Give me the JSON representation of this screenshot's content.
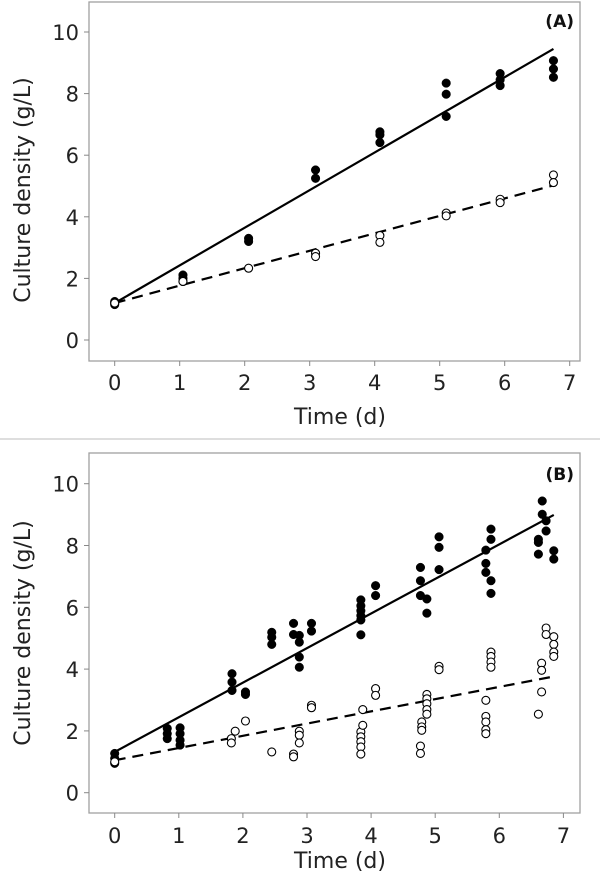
{
  "chart_data": [
    {
      "type": "scatter",
      "panel_label": "(A)",
      "xlabel": "Time (d)",
      "ylabel": "Culture density (g/L)",
      "xlim": [
        0,
        7
      ],
      "ylim": [
        0,
        10
      ],
      "xticks": [
        0,
        1,
        2,
        3,
        4,
        5,
        6,
        7
      ],
      "yticks": [
        0,
        2,
        4,
        6,
        8,
        10
      ],
      "grid": false,
      "series": [
        {
          "marker": "filled",
          "points": [
            [
              0,
              1.25
            ],
            [
              0,
              1.2
            ],
            [
              0,
              1.15
            ],
            [
              1.05,
              2.11
            ],
            [
              1.05,
              2.0
            ],
            [
              1.05,
              1.9
            ],
            [
              2.06,
              3.3
            ],
            [
              2.06,
              3.2
            ],
            [
              3.09,
              5.52
            ],
            [
              3.09,
              5.25
            ],
            [
              4.08,
              6.76
            ],
            [
              4.08,
              6.66
            ],
            [
              4.08,
              6.41
            ],
            [
              5.1,
              8.34
            ],
            [
              5.1,
              7.98
            ],
            [
              5.1,
              7.26
            ],
            [
              5.93,
              8.65
            ],
            [
              5.93,
              8.45
            ],
            [
              5.93,
              8.26
            ],
            [
              6.75,
              9.07
            ],
            [
              6.75,
              8.8
            ],
            [
              6.75,
              8.53
            ]
          ],
          "fit": {
            "style": "solid",
            "from": [
              0,
              1.2
            ],
            "to": [
              6.75,
              9.45
            ]
          }
        },
        {
          "marker": "open",
          "points": [
            [
              0,
              1.2
            ],
            [
              1.05,
              1.9
            ],
            [
              2.06,
              2.33
            ],
            [
              3.09,
              2.82
            ],
            [
              3.09,
              2.71
            ],
            [
              4.08,
              3.39
            ],
            [
              4.08,
              3.17
            ],
            [
              5.1,
              4.12
            ],
            [
              5.1,
              4.03
            ],
            [
              5.93,
              4.57
            ],
            [
              5.93,
              4.46
            ],
            [
              6.75,
              5.36
            ],
            [
              6.75,
              5.11
            ]
          ],
          "fit": {
            "style": "dashed",
            "from": [
              0,
              1.2
            ],
            "to": [
              6.75,
              5.02
            ]
          }
        }
      ]
    },
    {
      "type": "scatter",
      "panel_label": "(B)",
      "xlabel": "Time (d)",
      "ylabel": "Culture density (g/L)",
      "xlim": [
        0,
        7
      ],
      "ylim": [
        0,
        10
      ],
      "xticks": [
        0,
        1,
        2,
        3,
        4,
        5,
        6,
        7
      ],
      "yticks": [
        0,
        2,
        4,
        6,
        8,
        10
      ],
      "grid": false,
      "series": [
        {
          "marker": "filled",
          "points": [
            [
              0,
              1.27
            ],
            [
              0,
              1.11
            ],
            [
              0,
              0.95
            ],
            [
              0.82,
              2.08
            ],
            [
              0.82,
              1.91
            ],
            [
              0.82,
              1.75
            ],
            [
              1.02,
              2.1
            ],
            [
              1.02,
              1.91
            ],
            [
              1.02,
              1.7
            ],
            [
              1.02,
              1.54
            ],
            [
              1.83,
              3.85
            ],
            [
              1.83,
              3.58
            ],
            [
              1.83,
              3.31
            ],
            [
              2.04,
              3.26
            ],
            [
              2.04,
              3.18
            ],
            [
              2.45,
              5.19
            ],
            [
              2.45,
              5.03
            ],
            [
              2.45,
              4.8
            ],
            [
              2.79,
              5.48
            ],
            [
              2.79,
              5.12
            ],
            [
              2.88,
              5.09
            ],
            [
              2.88,
              4.87
            ],
            [
              2.88,
              4.39
            ],
            [
              2.88,
              4.06
            ],
            [
              3.07,
              5.48
            ],
            [
              3.07,
              5.23
            ],
            [
              3.84,
              6.24
            ],
            [
              3.84,
              6.05
            ],
            [
              3.84,
              5.89
            ],
            [
              3.84,
              5.73
            ],
            [
              3.84,
              5.59
            ],
            [
              3.84,
              5.11
            ],
            [
              4.07,
              6.7
            ],
            [
              4.07,
              6.38
            ],
            [
              4.77,
              7.29
            ],
            [
              4.77,
              6.86
            ],
            [
              4.77,
              6.38
            ],
            [
              4.87,
              6.27
            ],
            [
              4.87,
              5.81
            ],
            [
              5.06,
              8.28
            ],
            [
              5.06,
              7.94
            ],
            [
              5.06,
              7.22
            ],
            [
              5.79,
              7.85
            ],
            [
              5.79,
              7.42
            ],
            [
              5.79,
              7.13
            ],
            [
              5.87,
              8.53
            ],
            [
              5.87,
              8.2
            ],
            [
              5.87,
              6.86
            ],
            [
              5.87,
              6.45
            ],
            [
              6.61,
              8.2
            ],
            [
              6.61,
              8.1
            ],
            [
              6.61,
              7.72
            ],
            [
              6.67,
              9.44
            ],
            [
              6.67,
              9.01
            ],
            [
              6.73,
              8.8
            ],
            [
              6.73,
              8.47
            ],
            [
              6.85,
              7.83
            ],
            [
              6.85,
              7.56
            ]
          ],
          "fit": {
            "style": "solid",
            "from": [
              0,
              1.32
            ],
            "to": [
              6.85,
              8.99
            ]
          }
        },
        {
          "marker": "open",
          "points": [
            [
              0,
              1.0
            ],
            [
              1.82,
              1.75
            ],
            [
              1.82,
              1.61
            ],
            [
              1.88,
              1.99
            ],
            [
              2.04,
              2.32
            ],
            [
              2.45,
              1.32
            ],
            [
              2.79,
              1.25
            ],
            [
              2.79,
              1.16
            ],
            [
              2.88,
              1.99
            ],
            [
              2.88,
              1.86
            ],
            [
              2.88,
              1.61
            ],
            [
              3.07,
              2.83
            ],
            [
              3.07,
              2.75
            ],
            [
              3.84,
              1.97
            ],
            [
              3.84,
              1.81
            ],
            [
              3.84,
              1.65
            ],
            [
              3.84,
              1.48
            ],
            [
              3.84,
              1.25
            ],
            [
              3.87,
              2.69
            ],
            [
              3.87,
              2.18
            ],
            [
              4.07,
              3.37
            ],
            [
              4.07,
              3.15
            ],
            [
              4.77,
              1.51
            ],
            [
              4.77,
              1.27
            ],
            [
              4.79,
              2.29
            ],
            [
              4.79,
              2.13
            ],
            [
              4.79,
              2.02
            ],
            [
              4.87,
              3.18
            ],
            [
              4.87,
              3.04
            ],
            [
              4.87,
              2.88
            ],
            [
              4.87,
              2.69
            ],
            [
              4.87,
              2.54
            ],
            [
              5.06,
              4.09
            ],
            [
              5.06,
              3.98
            ],
            [
              5.79,
              2.99
            ],
            [
              5.79,
              2.47
            ],
            [
              5.79,
              2.29
            ],
            [
              5.79,
              2.04
            ],
            [
              5.79,
              1.91
            ],
            [
              5.87,
              4.55
            ],
            [
              5.87,
              4.41
            ],
            [
              5.87,
              4.23
            ],
            [
              5.87,
              4.06
            ],
            [
              6.61,
              2.54
            ],
            [
              6.66,
              4.19
            ],
            [
              6.66,
              3.96
            ],
            [
              6.66,
              3.26
            ],
            [
              6.73,
              5.33
            ],
            [
              6.73,
              5.12
            ],
            [
              6.85,
              5.05
            ],
            [
              6.85,
              4.8
            ],
            [
              6.85,
              4.55
            ],
            [
              6.85,
              4.41
            ]
          ],
          "fit": {
            "style": "dashed",
            "from": [
              0,
              1.05
            ],
            "to": [
              6.85,
              3.76
            ]
          }
        }
      ]
    }
  ]
}
